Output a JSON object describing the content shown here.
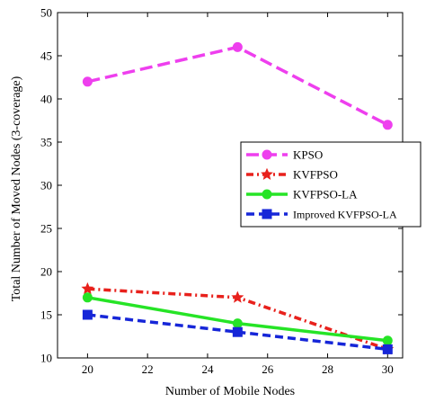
{
  "chart_data": {
    "type": "line",
    "title": "",
    "xlabel": "Number of  Mobile Nodes",
    "ylabel": "Total Number of Moved  Nodes  (3-coverage)",
    "xlim": [
      19,
      30.5
    ],
    "ylim": [
      10,
      50
    ],
    "xticks": [
      20,
      22,
      24,
      26,
      28,
      30
    ],
    "yticks": [
      10,
      15,
      20,
      25,
      30,
      35,
      40,
      45,
      50
    ],
    "grid": false,
    "legend_position": "right",
    "x": [
      20,
      25,
      30
    ],
    "series": [
      {
        "name": "KPSO",
        "values": [
          42,
          46,
          37
        ],
        "color": "#ee3fee",
        "dash": "long-dash",
        "marker": "circle"
      },
      {
        "name": "KVFPSO",
        "values": [
          18,
          17,
          11
        ],
        "color": "#e8211c",
        "dash": "dash-dot",
        "marker": "star"
      },
      {
        "name": "KVFPSO-LA",
        "values": [
          17,
          14,
          12
        ],
        "color": "#26e426",
        "dash": "solid",
        "marker": "circle"
      },
      {
        "name": "Improved KVFPSO-LA",
        "values": [
          15,
          13,
          11
        ],
        "color": "#1626d8",
        "dash": "dash",
        "marker": "square"
      }
    ]
  }
}
